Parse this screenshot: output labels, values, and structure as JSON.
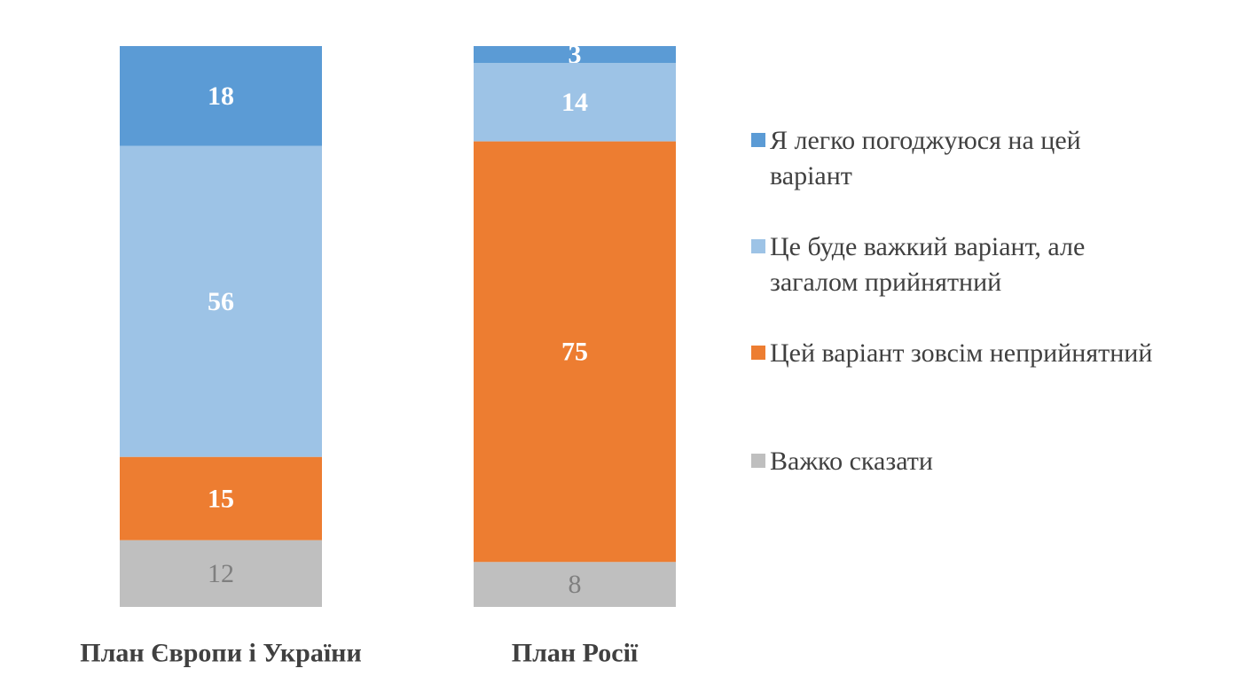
{
  "chart_data": {
    "type": "bar",
    "stacked": true,
    "orientation": "vertical",
    "categories": [
      "План Європи і України",
      "План Росії"
    ],
    "series": [
      {
        "name": "Я легко погоджуюся на цей варіант",
        "values": [
          18,
          3
        ],
        "color": "#5B9BD5",
        "label_color": "#ffffff",
        "label_bold": true
      },
      {
        "name": "Це буде важкий варіант, але загалом прийнятний",
        "values": [
          56,
          14
        ],
        "color": "#9DC3E6",
        "label_color": "#ffffff",
        "label_bold": true
      },
      {
        "name": "Цей варіант зовсім неприйнятний",
        "values": [
          15,
          75
        ],
        "color": "#ED7D31",
        "label_color": "#ffffff",
        "label_bold": true
      },
      {
        "name": "Важко сказати",
        "values": [
          12,
          8
        ],
        "color": "#BFBFBF",
        "label_color": "#7F7F7F",
        "label_bold": false
      }
    ],
    "legend_lines": [
      [
        "Я легко погоджуюся на цей",
        "варіант"
      ],
      [
        "Це буде важкий варіант, але",
        "загалом прийнятний"
      ],
      [
        "Цей варіант зовсім неприйнятний"
      ],
      [
        "Важко сказати"
      ]
    ],
    "title": "",
    "xlabel": "",
    "ylabel": "",
    "grid": false,
    "legend": "right"
  }
}
